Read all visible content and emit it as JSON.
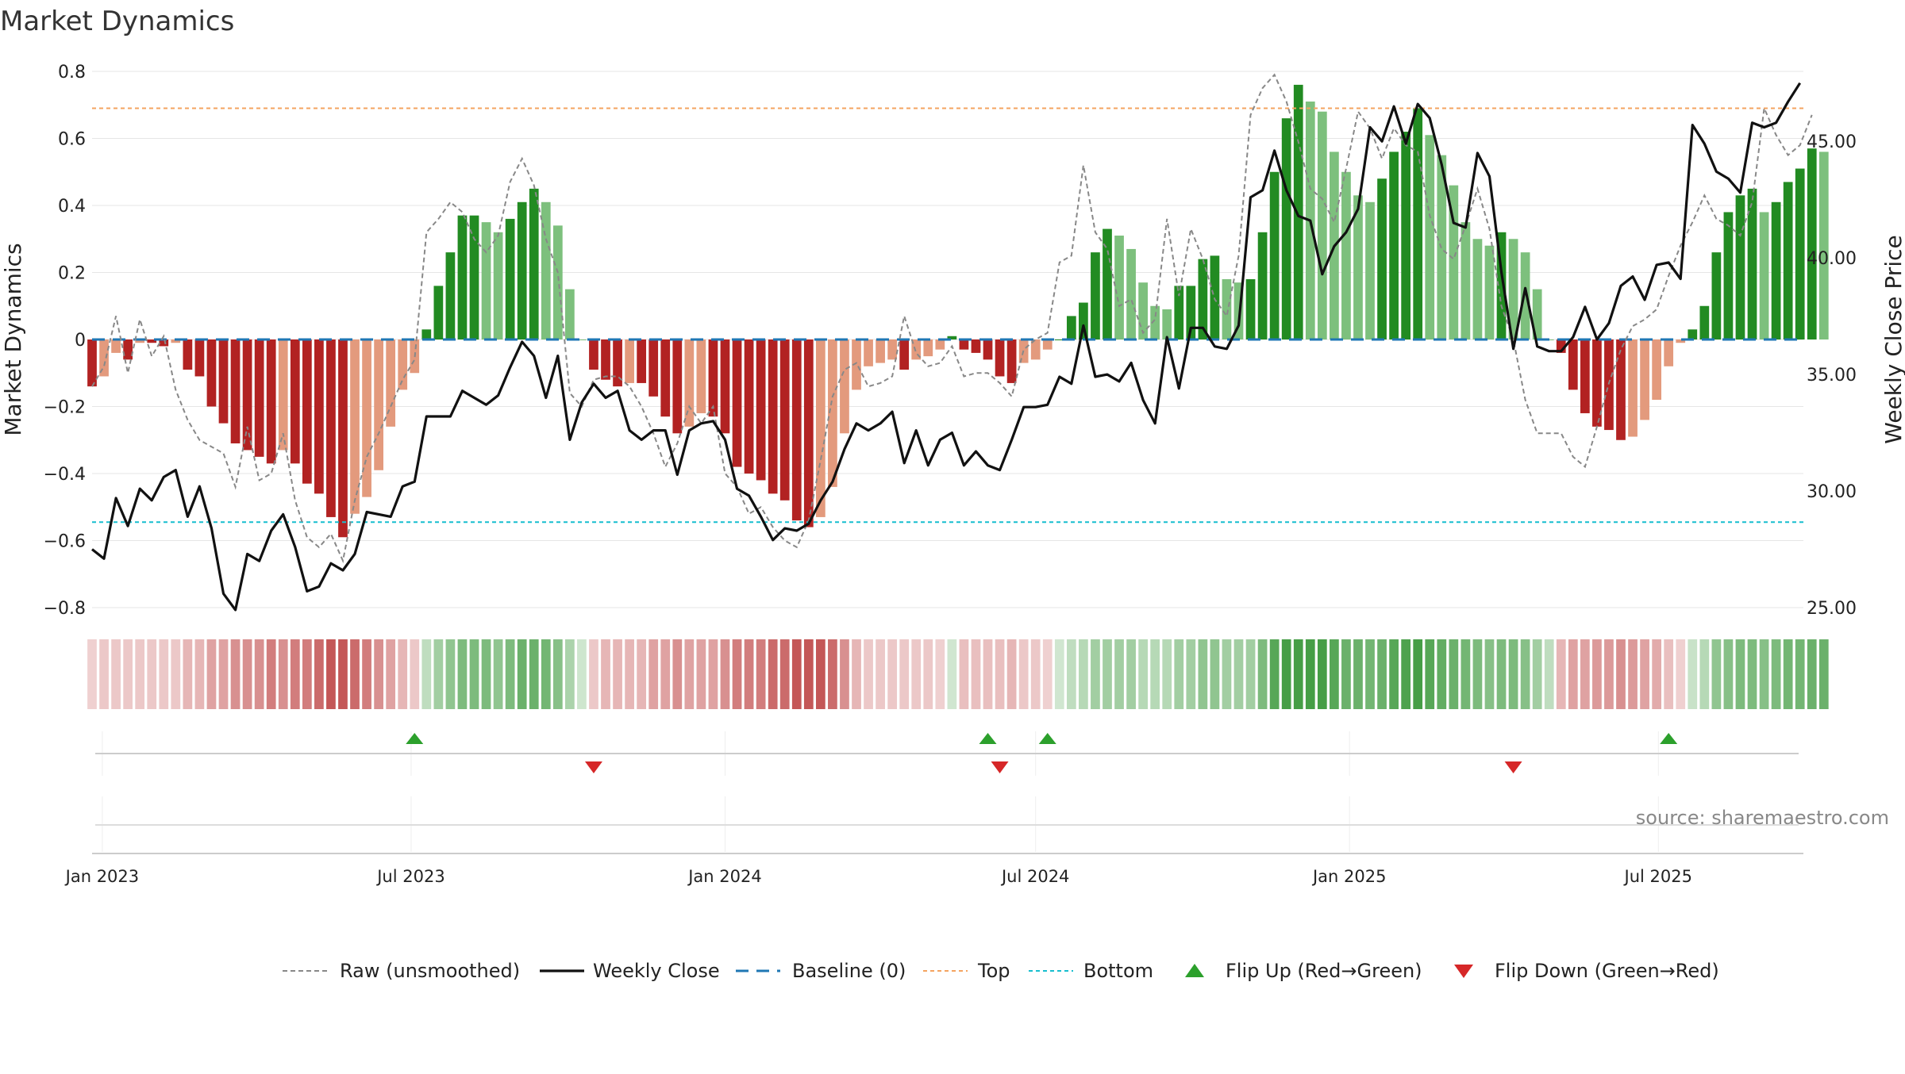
{
  "chart_data": {
    "type": "bar",
    "title": "Market Dynamics",
    "ylabel": "Market Dynamics",
    "y2label": "Weekly Close Price",
    "ylim": [
      -0.8,
      0.8
    ],
    "y2lim": [
      25.0,
      48.0
    ],
    "yticks": [
      "0.8",
      "0.6",
      "0.4",
      "0.2",
      "0",
      "−0.2",
      "−0.4",
      "−0.6",
      "−0.8"
    ],
    "y2ticks": [
      "45.00",
      "40.00",
      "35.00",
      "30.00",
      "25.00"
    ],
    "xlim": [
      "2022-12-26",
      "2025-09-24"
    ],
    "xticks": [
      {
        "date": "2023-01-01",
        "label": "Jan 2023"
      },
      {
        "date": "2023-07-01",
        "label": "Jul 2023"
      },
      {
        "date": "2024-01-01",
        "label": "Jan 2024"
      },
      {
        "date": "2024-07-01",
        "label": "Jul 2024"
      },
      {
        "date": "2025-01-01",
        "label": "Jan 2025"
      },
      {
        "date": "2025-07-01",
        "label": "Jul 2025"
      }
    ],
    "start_week": "2022-12-26",
    "week_step_days": 7,
    "top_level": 0.69,
    "bottom_level": -0.545,
    "grid": true,
    "legend_position": "bottom-center",
    "source_text": "source: sharemaestro.com",
    "colors": {
      "strong_red": "#b22222",
      "light_red": "#e39a7d",
      "strong_green": "#228b22",
      "light_green": "#7dc07d",
      "weekly_close": "#111111",
      "raw": "#888888",
      "baseline": "#1f77b4",
      "top": "#f4a460",
      "bottom": "#17becf",
      "flip_up": "#2ca02c",
      "flip_down": "#d62728"
    },
    "series": [
      {
        "name": "Market Dynamics",
        "values": [
          -0.14,
          -0.11,
          -0.04,
          -0.06,
          -0.01,
          -0.01,
          -0.02,
          -0.01,
          -0.09,
          -0.11,
          -0.2,
          -0.25,
          -0.31,
          -0.33,
          -0.35,
          -0.37,
          -0.33,
          -0.37,
          -0.43,
          -0.46,
          -0.53,
          -0.59,
          -0.52,
          -0.47,
          -0.39,
          -0.26,
          -0.15,
          -0.1,
          0.03,
          0.16,
          0.26,
          0.37,
          0.37,
          0.35,
          0.32,
          0.36,
          0.41,
          0.45,
          0.41,
          0.34,
          0.15,
          0.0,
          -0.09,
          -0.12,
          -0.14,
          -0.13,
          -0.13,
          -0.17,
          -0.23,
          -0.28,
          -0.26,
          -0.22,
          -0.23,
          -0.28,
          -0.38,
          -0.4,
          -0.42,
          -0.46,
          -0.48,
          -0.54,
          -0.56,
          -0.53,
          -0.44,
          -0.28,
          -0.15,
          -0.08,
          -0.07,
          -0.06,
          -0.09,
          -0.06,
          -0.05,
          -0.03,
          0.01,
          -0.03,
          -0.04,
          -0.06,
          -0.11,
          -0.13,
          -0.07,
          -0.06,
          -0.03,
          0.0,
          0.07,
          0.11,
          0.26,
          0.33,
          0.31,
          0.27,
          0.17,
          0.1,
          0.09,
          0.16,
          0.16,
          0.24,
          0.25,
          0.18,
          0.17,
          0.18,
          0.32,
          0.5,
          0.66,
          0.76,
          0.71,
          0.68,
          0.56,
          0.5,
          0.43,
          0.41,
          0.48,
          0.56,
          0.62,
          0.69,
          0.61,
          0.55,
          0.46,
          0.35,
          0.3,
          0.28,
          0.32,
          0.3,
          0.26,
          0.15,
          0.0,
          -0.04,
          -0.15,
          -0.22,
          -0.26,
          -0.27,
          -0.3,
          -0.29,
          -0.24,
          -0.18,
          -0.08,
          -0.01,
          0.03,
          0.1,
          0.26,
          0.38,
          0.43,
          0.45,
          0.38,
          0.41,
          0.47,
          0.51,
          0.57,
          0.56
        ]
      },
      {
        "name": "Raw (unsmoothed)",
        "values": [
          -0.14,
          -0.08,
          0.07,
          -0.1,
          0.06,
          -0.05,
          0.01,
          -0.15,
          -0.24,
          -0.3,
          -0.32,
          -0.34,
          -0.44,
          -0.26,
          -0.42,
          -0.4,
          -0.28,
          -0.48,
          -0.59,
          -0.62,
          -0.58,
          -0.66,
          -0.48,
          -0.35,
          -0.28,
          -0.2,
          -0.12,
          -0.06,
          0.32,
          0.36,
          0.41,
          0.38,
          0.3,
          0.26,
          0.31,
          0.47,
          0.54,
          0.46,
          0.3,
          0.2,
          -0.16,
          -0.2,
          -0.12,
          -0.11,
          -0.11,
          -0.14,
          -0.2,
          -0.28,
          -0.38,
          -0.31,
          -0.2,
          -0.25,
          -0.2,
          -0.4,
          -0.44,
          -0.52,
          -0.5,
          -0.56,
          -0.6,
          -0.62,
          -0.54,
          -0.36,
          -0.17,
          -0.09,
          -0.07,
          -0.14,
          -0.13,
          -0.11,
          0.07,
          -0.04,
          -0.08,
          -0.07,
          -0.02,
          -0.11,
          -0.1,
          -0.1,
          -0.13,
          -0.17,
          -0.03,
          0.0,
          0.02,
          0.23,
          0.25,
          0.52,
          0.32,
          0.27,
          0.1,
          0.12,
          0.02,
          0.06,
          0.36,
          0.13,
          0.33,
          0.24,
          0.12,
          0.07,
          0.25,
          0.67,
          0.75,
          0.79,
          0.71,
          0.59,
          0.45,
          0.42,
          0.35,
          0.51,
          0.68,
          0.63,
          0.54,
          0.63,
          0.58,
          0.56,
          0.37,
          0.27,
          0.24,
          0.34,
          0.45,
          0.33,
          0.1,
          0.0,
          -0.18,
          -0.28,
          -0.28,
          -0.28,
          -0.35,
          -0.38,
          -0.26,
          -0.13,
          -0.03,
          0.04,
          0.06,
          0.09,
          0.19,
          0.28,
          0.35,
          0.43,
          0.36,
          0.34,
          0.31,
          0.41,
          0.69,
          0.61,
          0.55,
          0.58,
          0.67
        ]
      },
      {
        "name": "Weekly Close",
        "values": [
          27.5,
          27.1,
          29.7,
          28.5,
          30.1,
          29.6,
          30.6,
          30.9,
          28.9,
          30.2,
          28.4,
          25.6,
          24.9,
          27.3,
          27.0,
          28.3,
          29.0,
          27.6,
          25.7,
          25.9,
          26.9,
          26.6,
          27.3,
          29.1,
          29.0,
          28.9,
          30.2,
          30.4,
          33.2,
          33.2,
          33.2,
          34.3,
          34.0,
          33.7,
          34.1,
          35.3,
          36.4,
          35.8,
          34.0,
          35.8,
          32.2,
          33.8,
          34.6,
          34.0,
          34.3,
          32.6,
          32.2,
          32.6,
          32.6,
          30.7,
          32.6,
          32.9,
          33.0,
          32.2,
          30.1,
          29.8,
          28.9,
          27.9,
          28.4,
          28.3,
          28.6,
          29.6,
          30.4,
          31.8,
          32.9,
          32.6,
          32.9,
          33.4,
          31.2,
          32.6,
          31.1,
          32.2,
          32.5,
          31.1,
          31.7,
          31.1,
          30.9,
          32.2,
          33.6,
          33.6,
          33.7,
          34.9,
          34.6,
          37.1,
          34.9,
          35.0,
          34.7,
          35.5,
          33.9,
          32.9,
          36.6,
          34.4,
          37.0,
          37.0,
          36.2,
          36.1,
          37.1,
          42.6,
          42.9,
          44.6,
          42.9,
          41.8,
          41.6,
          39.3,
          40.5,
          41.1,
          42.1,
          45.6,
          45.0,
          46.5,
          44.9,
          46.6,
          46.0,
          44.0,
          41.5,
          41.3,
          44.5,
          43.5,
          39.4,
          36.1,
          38.7,
          36.2,
          36.0,
          36.0,
          36.6,
          37.9,
          36.5,
          37.2,
          38.8,
          39.2,
          38.2,
          39.7,
          39.8,
          39.1,
          45.7,
          44.9,
          43.7,
          43.4,
          42.8,
          45.8,
          45.6,
          45.8,
          46.7,
          47.5
        ]
      }
    ],
    "heat_levels": [
      0.1,
      0.15,
      0.15,
      0.15,
      0.15,
      0.15,
      0.15,
      0.15,
      0.25,
      0.25,
      0.35,
      0.35,
      0.45,
      0.45,
      0.45,
      0.55,
      0.45,
      0.55,
      0.55,
      0.65,
      0.75,
      0.75,
      0.65,
      0.55,
      0.45,
      0.35,
      0.25,
      0.15,
      0.2,
      0.35,
      0.45,
      0.55,
      0.55,
      0.55,
      0.45,
      0.55,
      0.65,
      0.65,
      0.6,
      0.5,
      0.3,
      0.12,
      0.15,
      0.25,
      0.25,
      0.25,
      0.25,
      0.35,
      0.35,
      0.45,
      0.35,
      0.35,
      0.35,
      0.45,
      0.55,
      0.55,
      0.55,
      0.65,
      0.65,
      0.75,
      0.75,
      0.75,
      0.65,
      0.45,
      0.25,
      0.15,
      0.15,
      0.15,
      0.15,
      0.15,
      0.15,
      0.1,
      0.1,
      0.2,
      0.2,
      0.2,
      0.2,
      0.25,
      0.15,
      0.15,
      0.1,
      0.1,
      0.2,
      0.25,
      0.35,
      0.35,
      0.35,
      0.35,
      0.25,
      0.25,
      0.25,
      0.35,
      0.35,
      0.45,
      0.45,
      0.35,
      0.35,
      0.35,
      0.55,
      0.75,
      0.85,
      0.85,
      0.85,
      0.85,
      0.75,
      0.65,
      0.65,
      0.6,
      0.65,
      0.75,
      0.8,
      0.85,
      0.75,
      0.7,
      0.65,
      0.6,
      0.55,
      0.5,
      0.55,
      0.55,
      0.5,
      0.35,
      0.2,
      0.25,
      0.35,
      0.35,
      0.4,
      0.4,
      0.45,
      0.4,
      0.35,
      0.3,
      0.2,
      0.1,
      0.15,
      0.25,
      0.45,
      0.5,
      0.55,
      0.55,
      0.5,
      0.55,
      0.6,
      0.6,
      0.65,
      0.65
    ],
    "flips_up": [
      "2023-07-03",
      "2024-06-03",
      "2024-07-08",
      "2025-07-07"
    ],
    "flips_down": [
      "2023-10-16",
      "2024-06-10",
      "2025-04-07"
    ],
    "legend": [
      {
        "label": "Raw (unsmoothed)",
        "style": "raw"
      },
      {
        "label": "Weekly Close",
        "style": "close"
      },
      {
        "label": "Baseline (0)",
        "style": "baseline"
      },
      {
        "label": "Top",
        "style": "top"
      },
      {
        "label": "Bottom",
        "style": "bottom"
      },
      {
        "label": "Flip Up (Red→Green)",
        "style": "flip_up"
      },
      {
        "label": "Flip Down (Green→Red)",
        "style": "flip_down"
      }
    ]
  }
}
